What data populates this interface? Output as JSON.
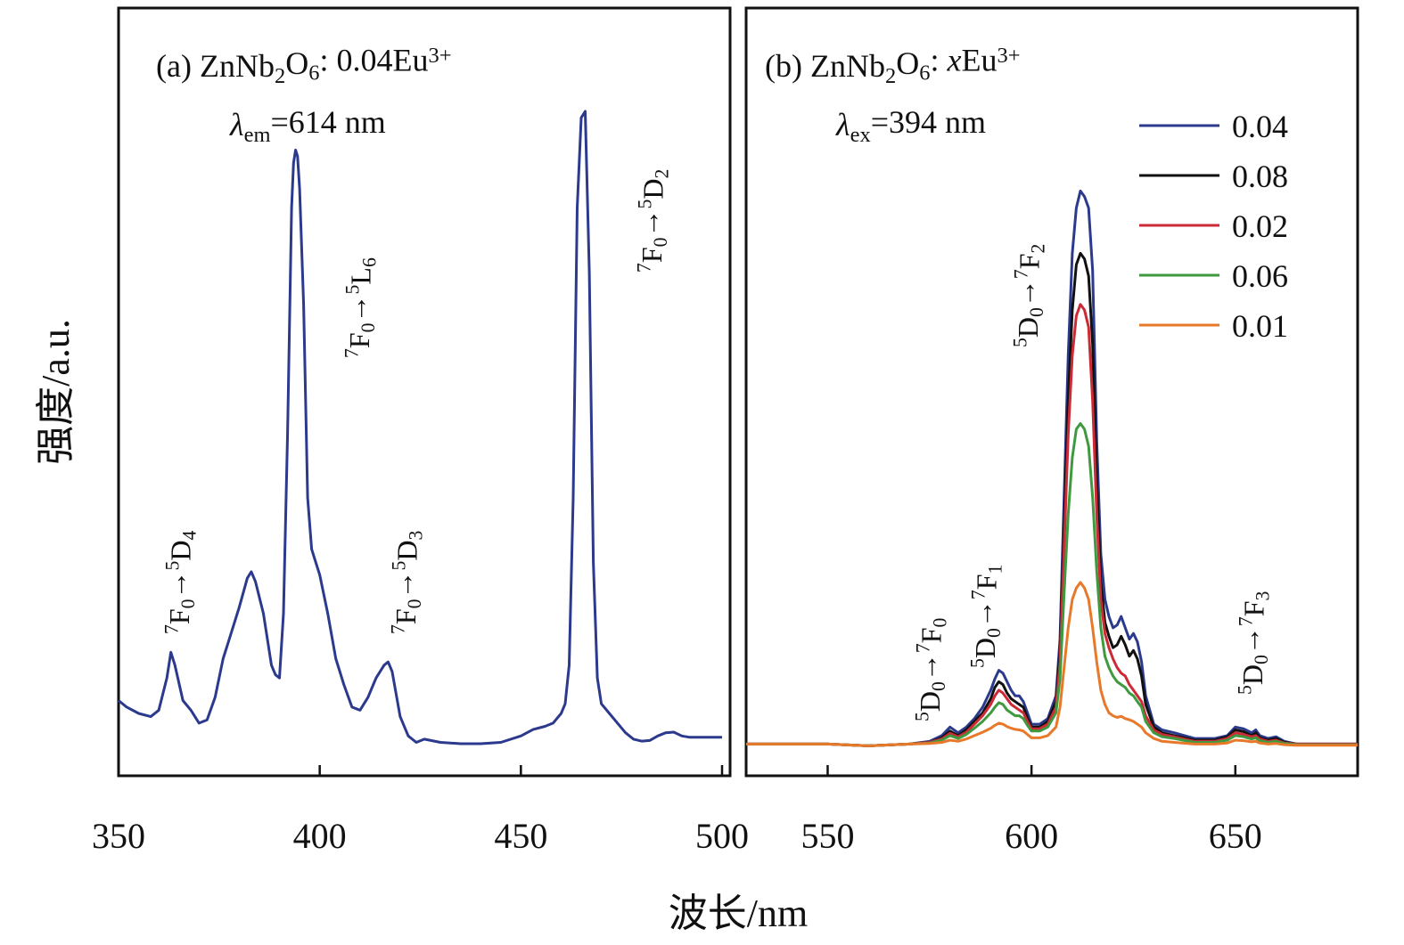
{
  "ylabel": "强度/a.u.",
  "xlabel": "波长/nm",
  "chart_data": [
    {
      "type": "line",
      "panel_label": "(a)",
      "sample": "ZnNb2O6: 0.04Eu3+",
      "monitor": "λem=614 nm",
      "xlim": [
        350,
        500
      ],
      "xticks": [
        350,
        400,
        450,
        500
      ],
      "ylim": [
        0,
        100
      ],
      "series": [
        {
          "color": "#2b3a8c",
          "x": [
            350,
            352,
            355,
            358,
            360,
            362,
            363,
            364,
            366,
            368,
            370,
            372,
            374,
            376,
            378,
            380,
            382,
            383,
            384,
            386,
            388,
            389,
            390,
            391,
            392,
            393,
            393.5,
            394,
            394.5,
            395,
            396,
            397,
            398,
            400,
            402,
            404,
            406,
            408,
            410,
            412,
            414,
            416,
            417,
            418,
            420,
            422,
            424,
            426,
            430,
            435,
            440,
            445,
            450,
            453,
            456,
            458,
            460,
            461,
            462,
            463,
            464,
            465,
            466,
            467,
            468,
            469,
            470,
            472,
            474,
            476,
            478,
            480,
            482,
            484,
            486,
            488,
            490,
            492,
            495,
            498,
            500
          ],
          "y": [
            8.5,
            7.5,
            6.5,
            6,
            7,
            12,
            16,
            14,
            8.5,
            7,
            5,
            5.5,
            9,
            15,
            19,
            23,
            27.5,
            28.5,
            27,
            22,
            14,
            12.5,
            12,
            22,
            50,
            85,
            92,
            94,
            93,
            88,
            70,
            40,
            32,
            28,
            22,
            15,
            11,
            7.5,
            7,
            9,
            12,
            14,
            14.5,
            13,
            6,
            3,
            2,
            2.5,
            2,
            1.8,
            1.8,
            2,
            3,
            4,
            4.5,
            5,
            6.5,
            8,
            14,
            40,
            85,
            99,
            100,
            75,
            30,
            12,
            8,
            6.5,
            5,
            3.5,
            2.5,
            2.2,
            2.3,
            3,
            3.5,
            3.6,
            3,
            2.8,
            2.8,
            2.8,
            2.8
          ]
        }
      ],
      "annotations": [
        {
          "text": "7F0→5D4",
          "x": 362
        },
        {
          "text": "7F0→5L6",
          "x": 408
        },
        {
          "text": "7F0→5D3",
          "x": 416
        },
        {
          "text": "7F0→5D2",
          "x": 478
        }
      ]
    },
    {
      "type": "line",
      "panel_label": "(b)",
      "sample": "ZnNb2O6: xEu3+",
      "monitor": "λex=394 nm",
      "xlim": [
        530,
        680
      ],
      "xticks": [
        550,
        600,
        650
      ],
      "ylim": [
        0,
        100
      ],
      "legend_position": "top-right",
      "x": [
        530,
        540,
        550,
        560,
        570,
        575,
        578,
        580,
        582,
        584,
        586,
        588,
        590,
        591,
        592,
        593,
        594,
        595,
        596,
        597,
        598,
        599,
        600,
        602,
        604,
        606,
        607,
        608,
        609,
        610,
        611,
        612,
        613,
        614,
        615,
        616,
        617,
        618,
        619,
        620,
        621,
        622,
        623,
        624,
        625,
        626,
        627,
        628,
        630,
        632,
        635,
        640,
        645,
        648,
        650,
        652,
        654,
        655,
        656,
        658,
        660,
        662,
        665,
        670,
        675,
        680
      ],
      "series": [
        {
          "name": "0.04",
          "color": "#2b3a8c",
          "y": [
            1.5,
            1.5,
            1.5,
            1.2,
            1.5,
            2,
            3,
            4.5,
            3.5,
            4.5,
            6,
            8,
            11,
            13,
            14.5,
            14,
            12.5,
            11,
            10,
            10,
            9,
            7,
            5,
            5,
            6,
            10,
            20,
            45,
            70,
            88,
            96,
            99,
            98,
            96,
            85,
            55,
            35,
            27,
            24,
            22,
            22.5,
            24,
            22,
            20,
            21,
            19.5,
            16,
            10,
            5,
            4,
            3.5,
            2.5,
            2.5,
            3,
            4.5,
            4.2,
            3.5,
            4,
            3,
            2.5,
            2.8,
            2,
            1.5,
            1.5,
            1.5,
            1.5
          ]
        },
        {
          "name": "0.08",
          "color": "#111111",
          "y": [
            1.5,
            1.5,
            1.5,
            1.2,
            1.5,
            1.8,
            2.6,
            3.8,
            3,
            4,
            5.5,
            7,
            9.5,
            11.5,
            12.5,
            12,
            10.5,
            9.5,
            9,
            8.5,
            8,
            6,
            4.5,
            4.5,
            5.5,
            9,
            18,
            40,
            62,
            78,
            86,
            88,
            87,
            84,
            72,
            48,
            30,
            23,
            20.5,
            18.5,
            19,
            20.5,
            19,
            17,
            18,
            16.5,
            13.5,
            8.5,
            4.5,
            3.5,
            3,
            2.2,
            2.2,
            2.8,
            4,
            3.7,
            3,
            3.5,
            2.6,
            2.2,
            2.5,
            1.8,
            1.5,
            1.5,
            1.5,
            1.5
          ]
        },
        {
          "name": "0.02",
          "color": "#cc2a36",
          "y": [
            1.5,
            1.5,
            1.5,
            1.2,
            1.5,
            1.8,
            2.4,
            3.4,
            2.8,
            3.6,
            5,
            6.5,
            8.5,
            10,
            11,
            10.5,
            9.5,
            8.5,
            8,
            7.5,
            7,
            5.5,
            4.2,
            4.2,
            5,
            8,
            16,
            36,
            56,
            70,
            77,
            79,
            78,
            75,
            62,
            42,
            27,
            21,
            18.5,
            16.5,
            15,
            14,
            13.5,
            12,
            11,
            10,
            9,
            6.5,
            4,
            3.2,
            2.8,
            2,
            2,
            2.5,
            3.5,
            3.2,
            2.8,
            3,
            2.4,
            2,
            2.2,
            1.7,
            1.5,
            1.5,
            1.5,
            1.5
          ]
        },
        {
          "name": "0.06",
          "color": "#3f9a3f",
          "y": [
            1.5,
            1.5,
            1.5,
            1.2,
            1.5,
            1.7,
            2.2,
            3,
            2.5,
            3.2,
            4.3,
            5.5,
            7,
            8,
            8.8,
            8.5,
            7.5,
            7,
            6.5,
            6.5,
            6,
            4.8,
            3.8,
            3.8,
            4.5,
            7,
            13,
            28,
            42,
            52,
            57,
            58,
            57,
            54,
            45,
            32,
            22,
            17,
            15,
            13.5,
            12.5,
            12,
            11.5,
            10.5,
            10,
            9,
            8,
            5.5,
            3.5,
            2.8,
            2.5,
            1.8,
            1.8,
            2.2,
            3,
            2.8,
            2.4,
            2.6,
            2.1,
            1.8,
            2,
            1.6,
            1.4,
            1.4,
            1.4,
            1.4
          ]
        },
        {
          "name": "0.01",
          "color": "#e8782a",
          "y": [
            1.5,
            1.5,
            1.5,
            1.2,
            1.5,
            1.6,
            1.8,
            2.2,
            2,
            2.4,
            3,
            3.6,
            4.3,
            4.8,
            5.2,
            5,
            4.6,
            4.3,
            4.1,
            4,
            3.8,
            3.2,
            2.6,
            2.6,
            3,
            4.5,
            8,
            15,
            22,
            27,
            29,
            30,
            29,
            27,
            22,
            16,
            11,
            8.5,
            7,
            6.5,
            6.2,
            6.4,
            6,
            5.8,
            5.5,
            5,
            4.5,
            3.5,
            2.5,
            2,
            1.8,
            1.5,
            1.5,
            1.7,
            2.2,
            2.1,
            1.9,
            2,
            1.7,
            1.5,
            1.6,
            1.4,
            1.3,
            1.3,
            1.3,
            1.3
          ]
        }
      ],
      "annotations": [
        {
          "text": "5D0→7F0",
          "x": 580
        },
        {
          "text": "5D0→7F1",
          "x": 592
        },
        {
          "text": "5D0→7F2",
          "x": 609
        },
        {
          "text": "5D0→7F3",
          "x": 654
        }
      ]
    }
  ]
}
